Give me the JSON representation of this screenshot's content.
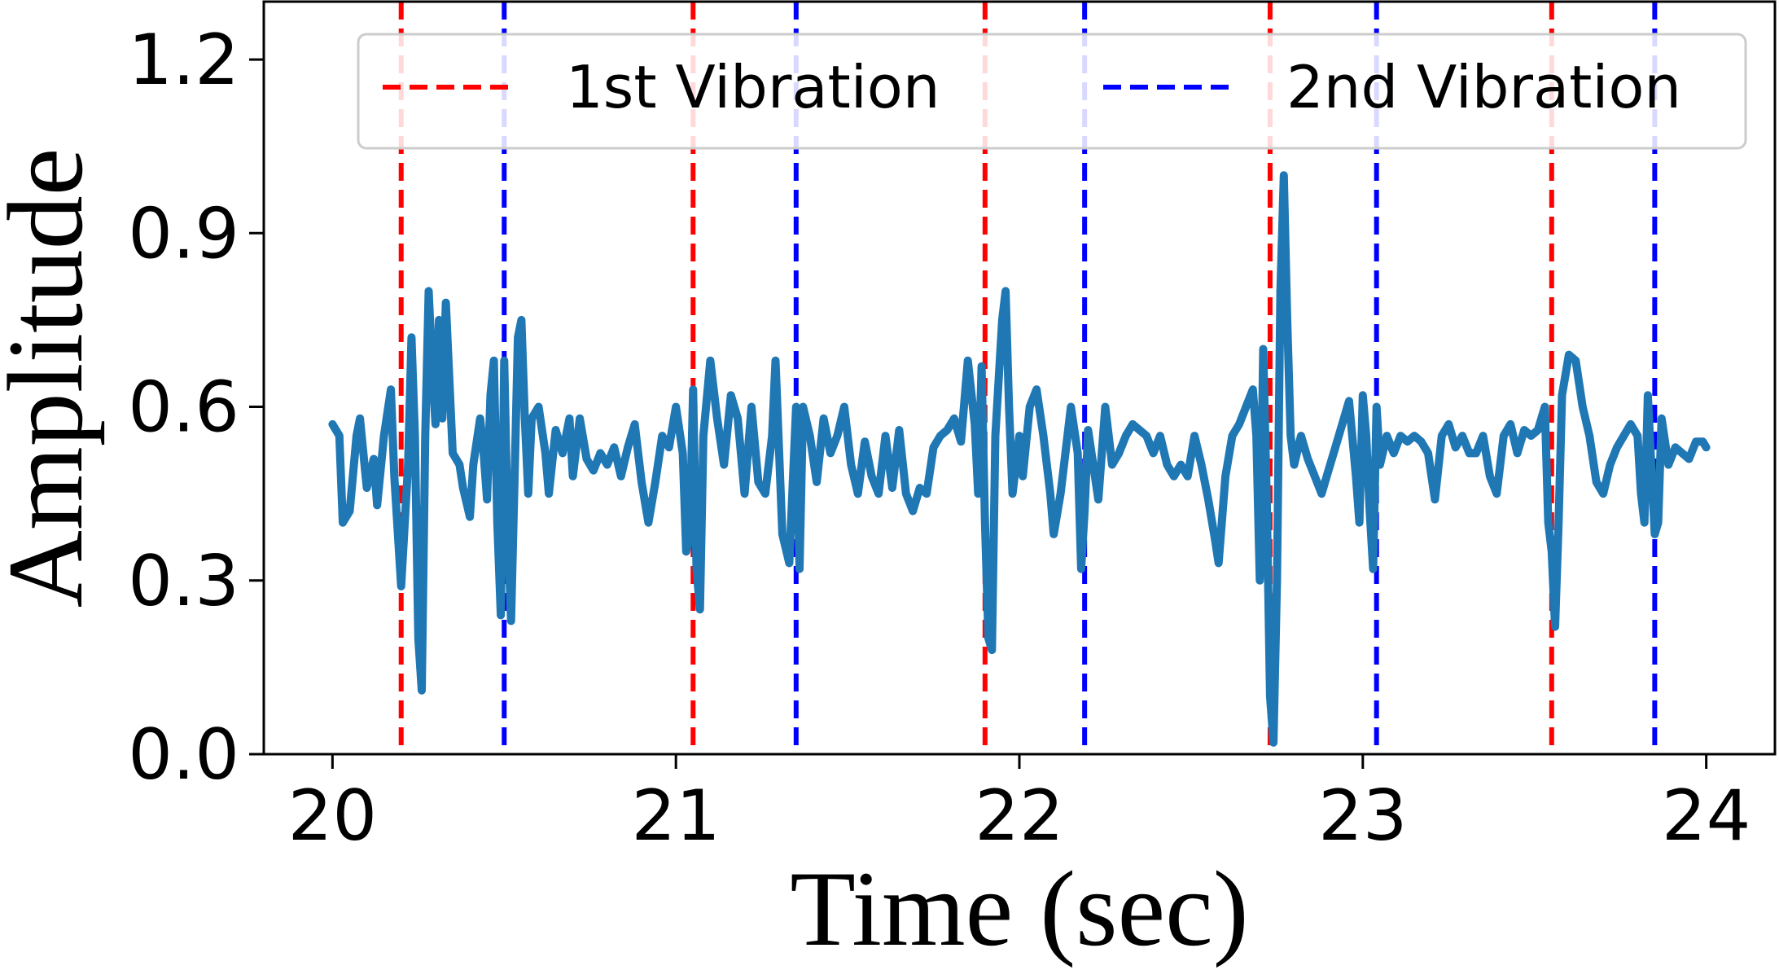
{
  "chart_data": {
    "type": "line",
    "xlabel": "Time (sec)",
    "ylabel": "Amplitude",
    "xlim": [
      19.8,
      24.2
    ],
    "ylim": [
      0.0,
      1.3
    ],
    "x_ticks": [
      20,
      21,
      22,
      23,
      24
    ],
    "y_ticks": [
      0.0,
      0.3,
      0.6,
      0.9,
      1.2
    ],
    "x_tick_labels": [
      "20",
      "21",
      "22",
      "23",
      "24"
    ],
    "y_tick_labels": [
      "0.0",
      "0.3",
      "0.6",
      "0.9",
      "1.2"
    ],
    "grid": false,
    "legend": {
      "placement": "top-right",
      "entries": [
        {
          "label": "1st Vibration",
          "color": "#ff0000",
          "style": "dashed"
        },
        {
          "label": "2nd Vibration",
          "color": "#0000ff",
          "style": "dashed"
        }
      ]
    },
    "markers": {
      "first_vibration": [
        20.2,
        21.05,
        21.9,
        22.73,
        23.55
      ],
      "second_vibration": [
        20.5,
        21.35,
        22.19,
        23.04,
        23.85
      ]
    },
    "series": [
      {
        "color": "#1f77b4",
        "points": [
          [
            20.0,
            0.57
          ],
          [
            20.02,
            0.55
          ],
          [
            20.03,
            0.4
          ],
          [
            20.05,
            0.42
          ],
          [
            20.07,
            0.55
          ],
          [
            20.08,
            0.58
          ],
          [
            20.09,
            0.52
          ],
          [
            20.1,
            0.46
          ],
          [
            20.12,
            0.51
          ],
          [
            20.13,
            0.43
          ],
          [
            20.15,
            0.55
          ],
          [
            20.17,
            0.63
          ],
          [
            20.18,
            0.48
          ],
          [
            20.2,
            0.29
          ],
          [
            20.22,
            0.5
          ],
          [
            20.23,
            0.72
          ],
          [
            20.24,
            0.55
          ],
          [
            20.25,
            0.2
          ],
          [
            20.26,
            0.11
          ],
          [
            20.27,
            0.55
          ],
          [
            20.28,
            0.8
          ],
          [
            20.29,
            0.67
          ],
          [
            20.3,
            0.57
          ],
          [
            20.31,
            0.75
          ],
          [
            20.32,
            0.58
          ],
          [
            20.33,
            0.78
          ],
          [
            20.34,
            0.65
          ],
          [
            20.35,
            0.52
          ],
          [
            20.37,
            0.5
          ],
          [
            20.38,
            0.46
          ],
          [
            20.4,
            0.41
          ],
          [
            20.41,
            0.5
          ],
          [
            20.42,
            0.54
          ],
          [
            20.43,
            0.58
          ],
          [
            20.44,
            0.52
          ],
          [
            20.45,
            0.44
          ],
          [
            20.46,
            0.62
          ],
          [
            20.47,
            0.68
          ],
          [
            20.48,
            0.4
          ],
          [
            20.49,
            0.24
          ],
          [
            20.5,
            0.68
          ],
          [
            20.51,
            0.4
          ],
          [
            20.52,
            0.23
          ],
          [
            20.53,
            0.47
          ],
          [
            20.54,
            0.72
          ],
          [
            20.55,
            0.75
          ],
          [
            20.56,
            0.58
          ],
          [
            20.57,
            0.45
          ],
          [
            20.58,
            0.58
          ],
          [
            20.6,
            0.6
          ],
          [
            20.62,
            0.52
          ],
          [
            20.63,
            0.45
          ],
          [
            20.65,
            0.56
          ],
          [
            20.67,
            0.52
          ],
          [
            20.69,
            0.58
          ],
          [
            20.7,
            0.48
          ],
          [
            20.72,
            0.58
          ],
          [
            20.74,
            0.51
          ],
          [
            20.76,
            0.49
          ],
          [
            20.78,
            0.52
          ],
          [
            20.8,
            0.5
          ],
          [
            20.82,
            0.53
          ],
          [
            20.84,
            0.48
          ],
          [
            20.86,
            0.53
          ],
          [
            20.88,
            0.57
          ],
          [
            20.9,
            0.47
          ],
          [
            20.92,
            0.4
          ],
          [
            20.94,
            0.47
          ],
          [
            20.96,
            0.55
          ],
          [
            20.98,
            0.53
          ],
          [
            21.0,
            0.6
          ],
          [
            21.02,
            0.52
          ],
          [
            21.03,
            0.35
          ],
          [
            21.04,
            0.38
          ],
          [
            21.05,
            0.63
          ],
          [
            21.06,
            0.32
          ],
          [
            21.07,
            0.25
          ],
          [
            21.08,
            0.55
          ],
          [
            21.1,
            0.68
          ],
          [
            21.12,
            0.58
          ],
          [
            21.14,
            0.5
          ],
          [
            21.16,
            0.62
          ],
          [
            21.18,
            0.58
          ],
          [
            21.2,
            0.45
          ],
          [
            21.22,
            0.6
          ],
          [
            21.24,
            0.47
          ],
          [
            21.26,
            0.45
          ],
          [
            21.28,
            0.55
          ],
          [
            21.29,
            0.68
          ],
          [
            21.31,
            0.38
          ],
          [
            21.33,
            0.33
          ],
          [
            21.35,
            0.6
          ],
          [
            21.36,
            0.32
          ],
          [
            21.37,
            0.6
          ],
          [
            21.39,
            0.55
          ],
          [
            21.41,
            0.47
          ],
          [
            21.43,
            0.58
          ],
          [
            21.45,
            0.52
          ],
          [
            21.47,
            0.55
          ],
          [
            21.49,
            0.6
          ],
          [
            21.51,
            0.5
          ],
          [
            21.53,
            0.45
          ],
          [
            21.55,
            0.54
          ],
          [
            21.57,
            0.48
          ],
          [
            21.59,
            0.45
          ],
          [
            21.61,
            0.55
          ],
          [
            21.63,
            0.46
          ],
          [
            21.65,
            0.56
          ],
          [
            21.67,
            0.45
          ],
          [
            21.69,
            0.42
          ],
          [
            21.71,
            0.46
          ],
          [
            21.73,
            0.45
          ],
          [
            21.75,
            0.53
          ],
          [
            21.77,
            0.55
          ],
          [
            21.79,
            0.56
          ],
          [
            21.81,
            0.58
          ],
          [
            21.83,
            0.54
          ],
          [
            21.85,
            0.68
          ],
          [
            21.87,
            0.57
          ],
          [
            21.88,
            0.45
          ],
          [
            21.89,
            0.67
          ],
          [
            21.9,
            0.4
          ],
          [
            21.91,
            0.2
          ],
          [
            21.92,
            0.18
          ],
          [
            21.93,
            0.55
          ],
          [
            21.95,
            0.75
          ],
          [
            21.96,
            0.8
          ],
          [
            21.97,
            0.6
          ],
          [
            21.98,
            0.45
          ],
          [
            22.0,
            0.55
          ],
          [
            22.01,
            0.48
          ],
          [
            22.03,
            0.6
          ],
          [
            22.05,
            0.63
          ],
          [
            22.07,
            0.55
          ],
          [
            22.09,
            0.45
          ],
          [
            22.1,
            0.38
          ],
          [
            22.12,
            0.45
          ],
          [
            22.14,
            0.55
          ],
          [
            22.15,
            0.6
          ],
          [
            22.17,
            0.52
          ],
          [
            22.18,
            0.32
          ],
          [
            22.19,
            0.42
          ],
          [
            22.2,
            0.56
          ],
          [
            22.21,
            0.52
          ],
          [
            22.23,
            0.44
          ],
          [
            22.25,
            0.6
          ],
          [
            22.27,
            0.5
          ],
          [
            22.29,
            0.52
          ],
          [
            22.31,
            0.55
          ],
          [
            22.33,
            0.57
          ],
          [
            22.35,
            0.56
          ],
          [
            22.37,
            0.55
          ],
          [
            22.39,
            0.52
          ],
          [
            22.41,
            0.55
          ],
          [
            22.43,
            0.5
          ],
          [
            22.45,
            0.48
          ],
          [
            22.47,
            0.5
          ],
          [
            22.49,
            0.48
          ],
          [
            22.51,
            0.55
          ],
          [
            22.53,
            0.5
          ],
          [
            22.55,
            0.44
          ],
          [
            22.57,
            0.37
          ],
          [
            22.58,
            0.33
          ],
          [
            22.6,
            0.48
          ],
          [
            22.62,
            0.55
          ],
          [
            22.64,
            0.57
          ],
          [
            22.66,
            0.6
          ],
          [
            22.68,
            0.63
          ],
          [
            22.69,
            0.55
          ],
          [
            22.7,
            0.3
          ],
          [
            22.71,
            0.7
          ],
          [
            22.72,
            0.45
          ],
          [
            22.73,
            0.1
          ],
          [
            22.74,
            0.02
          ],
          [
            22.75,
            0.3
          ],
          [
            22.76,
            0.8
          ],
          [
            22.77,
            1.0
          ],
          [
            22.78,
            0.75
          ],
          [
            22.79,
            0.55
          ],
          [
            22.8,
            0.5
          ],
          [
            22.82,
            0.55
          ],
          [
            22.84,
            0.51
          ],
          [
            22.86,
            0.48
          ],
          [
            22.88,
            0.45
          ],
          [
            22.9,
            0.49
          ],
          [
            22.92,
            0.53
          ],
          [
            22.94,
            0.57
          ],
          [
            22.96,
            0.61
          ],
          [
            22.98,
            0.48
          ],
          [
            22.99,
            0.4
          ],
          [
            23.0,
            0.62
          ],
          [
            23.01,
            0.55
          ],
          [
            23.02,
            0.42
          ],
          [
            23.03,
            0.32
          ],
          [
            23.04,
            0.6
          ],
          [
            23.05,
            0.5
          ],
          [
            23.07,
            0.55
          ],
          [
            23.09,
            0.52
          ],
          [
            23.11,
            0.55
          ],
          [
            23.13,
            0.54
          ],
          [
            23.15,
            0.55
          ],
          [
            23.17,
            0.54
          ],
          [
            23.19,
            0.52
          ],
          [
            23.21,
            0.44
          ],
          [
            23.23,
            0.55
          ],
          [
            23.25,
            0.57
          ],
          [
            23.27,
            0.53
          ],
          [
            23.29,
            0.55
          ],
          [
            23.31,
            0.52
          ],
          [
            23.33,
            0.52
          ],
          [
            23.35,
            0.55
          ],
          [
            23.37,
            0.48
          ],
          [
            23.39,
            0.45
          ],
          [
            23.41,
            0.55
          ],
          [
            23.43,
            0.57
          ],
          [
            23.45,
            0.52
          ],
          [
            23.47,
            0.56
          ],
          [
            23.49,
            0.55
          ],
          [
            23.51,
            0.56
          ],
          [
            23.53,
            0.6
          ],
          [
            23.54,
            0.4
          ],
          [
            23.55,
            0.35
          ],
          [
            23.56,
            0.22
          ],
          [
            23.57,
            0.4
          ],
          [
            23.58,
            0.62
          ],
          [
            23.6,
            0.69
          ],
          [
            23.62,
            0.68
          ],
          [
            23.64,
            0.6
          ],
          [
            23.66,
            0.55
          ],
          [
            23.68,
            0.47
          ],
          [
            23.7,
            0.45
          ],
          [
            23.72,
            0.5
          ],
          [
            23.74,
            0.53
          ],
          [
            23.76,
            0.55
          ],
          [
            23.78,
            0.57
          ],
          [
            23.8,
            0.55
          ],
          [
            23.81,
            0.45
          ],
          [
            23.82,
            0.4
          ],
          [
            23.83,
            0.62
          ],
          [
            23.84,
            0.5
          ],
          [
            23.85,
            0.38
          ],
          [
            23.86,
            0.4
          ],
          [
            23.87,
            0.58
          ],
          [
            23.89,
            0.5
          ],
          [
            23.91,
            0.53
          ],
          [
            23.93,
            0.52
          ],
          [
            23.95,
            0.51
          ],
          [
            23.97,
            0.54
          ],
          [
            23.99,
            0.54
          ],
          [
            24.0,
            0.53
          ]
        ]
      }
    ]
  }
}
